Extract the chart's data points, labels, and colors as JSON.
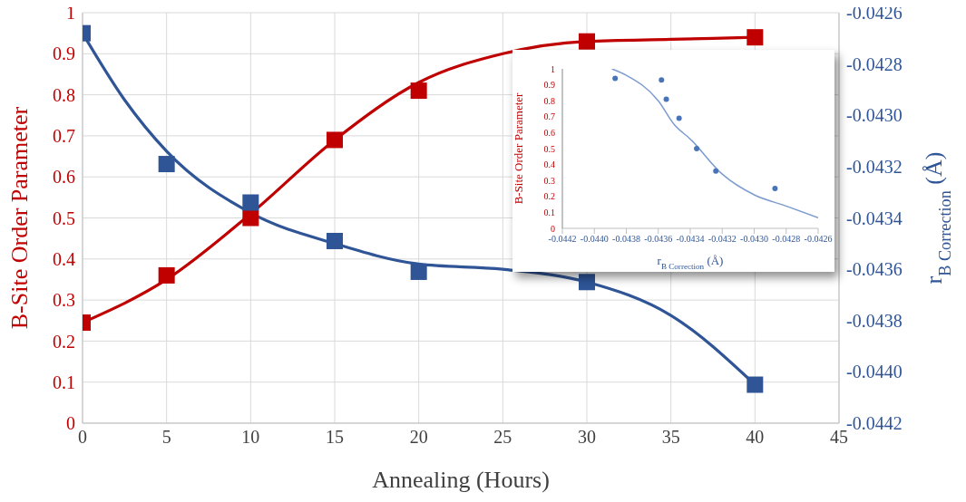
{
  "chart_data": [
    {
      "type": "scatter",
      "xlabel": "Annealing (Hours)",
      "ylabel": "B-Site Order Parameter",
      "y2label": "r$_{B Correction}$ (Å)",
      "xlim": [
        0,
        45
      ],
      "xticks": [
        0,
        5,
        10,
        15,
        20,
        25,
        30,
        35,
        40,
        45
      ],
      "ylim": [
        0,
        1
      ],
      "yticks": [
        0,
        0.1,
        0.2,
        0.3,
        0.4,
        0.5,
        0.6,
        0.7,
        0.8,
        0.9,
        1
      ],
      "y2lim": [
        -0.0442,
        -0.0426
      ],
      "y2ticks": [
        -0.0442,
        {
          "value": -0.044,
          "label": "-0.0440"
        },
        -0.0438,
        -0.0436,
        -0.0434,
        -0.0432,
        {
          "value": -0.043,
          "label": "-0.0430"
        },
        -0.0428,
        -0.0426
      ],
      "grid": true,
      "marker": "square",
      "series": [
        {
          "color": "#c00000",
          "x": [
            0,
            5,
            10,
            15,
            20,
            30,
            40
          ],
          "values": [
            0.245,
            0.36,
            0.5,
            0.69,
            0.81,
            0.93,
            0.94
          ]
        },
        {
          "type": "line",
          "marker": "none",
          "color": "#c00000",
          "x": [
            0,
            5,
            10,
            15,
            20,
            25,
            30,
            35,
            40
          ],
          "values": [
            0.245,
            0.35,
            0.51,
            0.69,
            0.83,
            0.9,
            0.93,
            0.935,
            0.94
          ]
        },
        {
          "axis": "y2",
          "color": "#2f5597",
          "x": [
            0,
            5,
            10,
            15,
            20,
            30,
            40
          ],
          "values": [
            -0.04268,
            -0.04319,
            -0.04334,
            -0.04349,
            -0.04361,
            -0.04365,
            -0.04405
          ]
        },
        {
          "type": "line",
          "marker": "none",
          "axis": "y2",
          "color": "#2f5597",
          "x": [
            0,
            2.5,
            5,
            10,
            15,
            20,
            25,
            30,
            35,
            40
          ],
          "values": [
            -0.04268,
            -0.04294,
            -0.04314,
            -0.04338,
            -0.0435,
            -0.04358,
            -0.0436,
            -0.04365,
            -0.04378,
            -0.04405
          ]
        }
      ]
    },
    {
      "type": "scatter",
      "xlabel": "r$_{B Correction}$ (Å)",
      "ylabel": "B-Site Order Parameter",
      "xlim": [
        -0.0442,
        -0.0426
      ],
      "xticks": [
        -0.0442,
        {
          "value": -0.044,
          "label": "-0.0440"
        },
        -0.0438,
        -0.0436,
        -0.0434,
        -0.0432,
        {
          "value": -0.043,
          "label": "-0.0430"
        },
        -0.0428,
        -0.0426
      ],
      "ylim": [
        0,
        1
      ],
      "yticks": [
        0,
        0.1,
        0.2,
        0.3,
        0.4,
        0.5,
        0.6,
        0.7,
        0.8,
        0.9,
        1
      ],
      "grid": false,
      "marker": "circle",
      "series": [
        {
          "color": "#4a74b8",
          "x": [
            -0.04387,
            -0.04358,
            -0.04355,
            -0.04347,
            -0.04336,
            -0.04324,
            -0.04287
          ],
          "values": [
            0.94,
            0.93,
            0.81,
            0.69,
            0.5,
            0.36,
            0.25
          ]
        },
        {
          "type": "line",
          "marker": "none",
          "color": "#7b9bd0",
          "x": [
            -0.04389,
            -0.0438,
            -0.0436,
            -0.0435,
            -0.0434,
            -0.0432,
            -0.043,
            -0.0428,
            -0.0426
          ],
          "values": [
            1,
            0.96,
            0.8,
            0.65,
            0.56,
            0.34,
            0.21,
            0.14,
            0.066
          ]
        }
      ]
    }
  ]
}
